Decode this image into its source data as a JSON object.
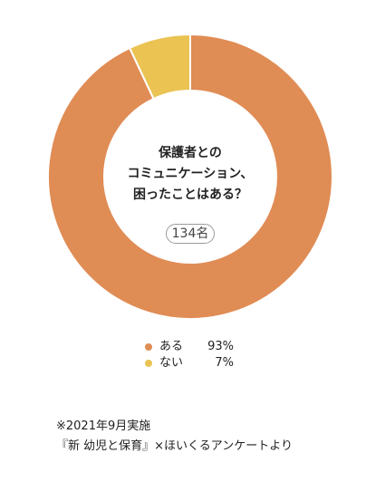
{
  "chart_data": {
    "type": "pie",
    "title": "保護者とのコミュニケーション、困ったことはある？",
    "title_lines": [
      "保護者との",
      "コミュニケーション、",
      "困ったことはある？"
    ],
    "total_label": "134名",
    "categories": [
      "ある",
      "ない"
    ],
    "values": [
      93,
      7
    ],
    "value_labels": [
      "93%",
      "7%"
    ],
    "colors": [
      "#e08c55",
      "#eac353"
    ],
    "donut": true,
    "legend_position": "bottom"
  },
  "footnote": {
    "date": "※2021年9月実施",
    "source": "『新 幼児と保育』×ほいくるアンケートより"
  }
}
